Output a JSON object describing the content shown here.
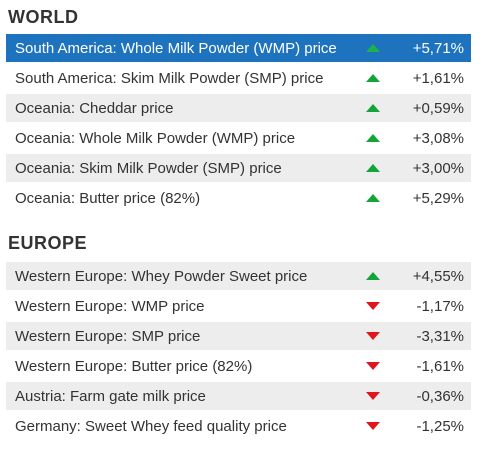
{
  "colors": {
    "selected_bg": "#1e73be",
    "stripe_bg": "#ededed",
    "up": "#13a538",
    "down": "#e0161b"
  },
  "sections": [
    {
      "title": "WORLD",
      "rows": [
        {
          "label": "South America: Whole Milk Powder (WMP) price",
          "trend": "up",
          "trend_icon": "triangle-up-icon",
          "change": "+5,71%",
          "selected": true
        },
        {
          "label": "South America: Skim Milk Powder (SMP) price",
          "trend": "up",
          "trend_icon": "triangle-up-icon",
          "change": "+1,61%"
        },
        {
          "label": "Oceania: Cheddar price",
          "trend": "up",
          "trend_icon": "triangle-up-icon",
          "change": "+0,59%"
        },
        {
          "label": "Oceania: Whole Milk Powder (WMP) price",
          "trend": "up",
          "trend_icon": "triangle-up-icon",
          "change": "+3,08%"
        },
        {
          "label": "Oceania: Skim Milk Powder (SMP) price",
          "trend": "up",
          "trend_icon": "triangle-up-icon",
          "change": "+3,00%"
        },
        {
          "label": "Oceania: Butter price (82%)",
          "trend": "up",
          "trend_icon": "triangle-up-icon",
          "change": "+5,29%"
        }
      ]
    },
    {
      "title": "EUROPE",
      "rows": [
        {
          "label": "Western Europe: Whey Powder Sweet price",
          "trend": "up",
          "trend_icon": "triangle-up-icon",
          "change": "+4,55%"
        },
        {
          "label": "Western Europe: WMP price",
          "trend": "down",
          "trend_icon": "triangle-down-icon",
          "change": "-1,17%"
        },
        {
          "label": "Western Europe: SMP price",
          "trend": "down",
          "trend_icon": "triangle-down-icon",
          "change": "-3,31%"
        },
        {
          "label": "Western Europe: Butter price (82%)",
          "trend": "down",
          "trend_icon": "triangle-down-icon",
          "change": "-1,61%"
        },
        {
          "label": "Austria: Farm gate milk price",
          "trend": "down",
          "trend_icon": "triangle-down-icon",
          "change": "-0,36%"
        },
        {
          "label": "Germany: Sweet Whey feed quality price",
          "trend": "down",
          "trend_icon": "triangle-down-icon",
          "change": "-1,25%"
        }
      ]
    }
  ]
}
